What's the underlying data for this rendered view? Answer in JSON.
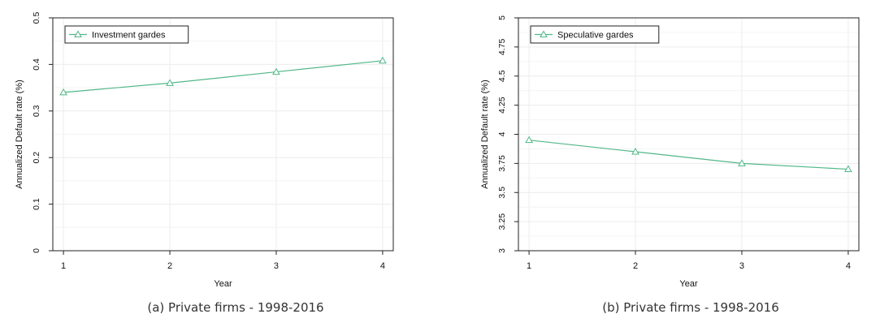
{
  "panels": [
    {
      "caption": "(a) Private firms - 1998-2016",
      "chart_data": {
        "type": "line",
        "x": [
          1,
          2,
          3,
          4
        ],
        "xticks": [
          "1",
          "2",
          "3",
          "4"
        ],
        "yticks": [
          "0",
          "0.1",
          "0.2",
          "0.3",
          "0.4",
          "0.5"
        ],
        "ylim": [
          0,
          0.5
        ],
        "xlim": [
          0.9,
          4.1
        ],
        "xlabel": "Year",
        "ylabel": "Annualized Default rate (%)",
        "grid": true,
        "legend_position": "top-left",
        "series": [
          {
            "name": "Investment gardes",
            "values": [
              0.34,
              0.36,
              0.384,
              0.408
            ],
            "marker": "triangle",
            "color": "#52b788"
          }
        ]
      }
    },
    {
      "caption": "(b) Private firms - 1998-2016",
      "chart_data": {
        "type": "line",
        "x": [
          1,
          2,
          3,
          4
        ],
        "xticks": [
          "1",
          "2",
          "3",
          "4"
        ],
        "yticks": [
          "3",
          "3.25",
          "3.5",
          "3.75",
          "4",
          "4.25",
          "4.5",
          "4.75",
          "5"
        ],
        "ylim": [
          3,
          5
        ],
        "xlim": [
          0.9,
          4.1
        ],
        "xlabel": "Year",
        "ylabel": "Annualized Default rate (%)",
        "grid": true,
        "legend_position": "top-left",
        "series": [
          {
            "name": "Speculative gardes",
            "values": [
              3.95,
              3.85,
              3.75,
              3.7
            ],
            "marker": "triangle",
            "color": "#52b788"
          }
        ]
      }
    }
  ]
}
